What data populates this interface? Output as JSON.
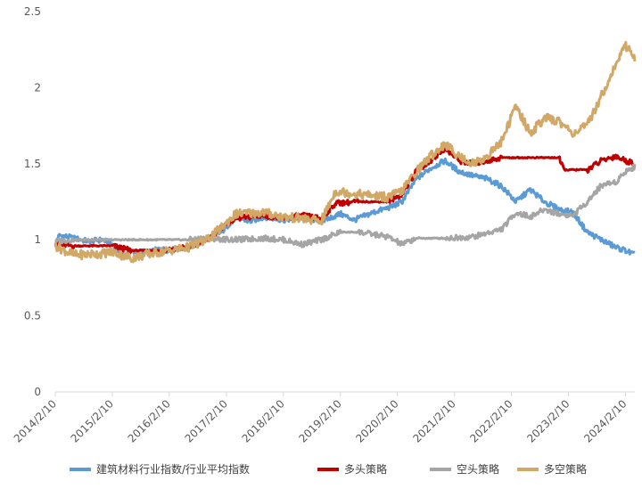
{
  "chart_data": {
    "type": "line",
    "title": "",
    "xlabel": "",
    "ylabel": "",
    "ylim": [
      0,
      2.5
    ],
    "y_ticks": [
      "0",
      "0.5",
      "1",
      "1.5",
      "2",
      "2.5"
    ],
    "x_range": [
      "2014-02-10",
      "2024-04-10"
    ],
    "x_ticks": [
      "2014/2/10",
      "2015/2/10",
      "2016/2/10",
      "2017/2/10",
      "2018/2/10",
      "2019/2/10",
      "2020/2/10",
      "2021/2/10",
      "2022/2/10",
      "2023/2/10",
      "2024/2/10"
    ],
    "grid": false,
    "legend_position": "bottom",
    "series": [
      {
        "name": "建筑材料行业指数/行业平均指数",
        "color": "#5b9bd5",
        "points": [
          [
            "2014-02-10",
            0.98
          ],
          [
            "2014-03-10",
            1.03
          ],
          [
            "2014-06-10",
            1.01
          ],
          [
            "2014-09-10",
            0.99
          ],
          [
            "2014-12-10",
            1.0
          ],
          [
            "2015-02-10",
            0.97
          ],
          [
            "2015-04-10",
            0.9
          ],
          [
            "2015-06-10",
            0.92
          ],
          [
            "2015-09-10",
            0.91
          ],
          [
            "2015-12-10",
            0.94
          ],
          [
            "2016-02-10",
            0.93
          ],
          [
            "2016-06-10",
            0.95
          ],
          [
            "2016-10-10",
            1.0
          ],
          [
            "2017-01-10",
            1.05
          ],
          [
            "2017-04-10",
            1.15
          ],
          [
            "2017-07-10",
            1.12
          ],
          [
            "2017-10-10",
            1.15
          ],
          [
            "2018-02-10",
            1.13
          ],
          [
            "2018-06-10",
            1.15
          ],
          [
            "2018-10-10",
            1.12
          ],
          [
            "2019-02-10",
            1.17
          ],
          [
            "2019-05-10",
            1.13
          ],
          [
            "2019-09-10",
            1.18
          ],
          [
            "2020-01-10",
            1.22
          ],
          [
            "2020-03-10",
            1.25
          ],
          [
            "2020-06-10",
            1.4
          ],
          [
            "2020-09-10",
            1.47
          ],
          [
            "2020-12-10",
            1.52
          ],
          [
            "2021-03-10",
            1.45
          ],
          [
            "2021-06-10",
            1.42
          ],
          [
            "2021-09-10",
            1.4
          ],
          [
            "2021-12-10",
            1.35
          ],
          [
            "2022-03-10",
            1.25
          ],
          [
            "2022-06-10",
            1.33
          ],
          [
            "2022-09-10",
            1.25
          ],
          [
            "2022-12-10",
            1.2
          ],
          [
            "2023-03-10",
            1.18
          ],
          [
            "2023-06-10",
            1.05
          ],
          [
            "2023-09-10",
            1.0
          ],
          [
            "2023-12-10",
            0.95
          ],
          [
            "2024-02-10",
            0.93
          ],
          [
            "2024-04-10",
            0.9
          ]
        ]
      },
      {
        "name": "多头策略",
        "color": "#c00000",
        "points": [
          [
            "2014-02-10",
            0.97
          ],
          [
            "2014-06-10",
            0.96
          ],
          [
            "2015-02-10",
            0.96
          ],
          [
            "2015-06-10",
            0.93
          ],
          [
            "2015-12-10",
            0.93
          ],
          [
            "2016-06-10",
            0.95
          ],
          [
            "2016-10-10",
            1.0
          ],
          [
            "2017-01-10",
            1.08
          ],
          [
            "2017-04-10",
            1.14
          ],
          [
            "2017-10-10",
            1.16
          ],
          [
            "2018-02-10",
            1.14
          ],
          [
            "2018-06-10",
            1.16
          ],
          [
            "2018-10-10",
            1.14
          ],
          [
            "2019-01-10",
            1.24
          ],
          [
            "2019-06-10",
            1.25
          ],
          [
            "2019-12-10",
            1.25
          ],
          [
            "2020-03-10",
            1.3
          ],
          [
            "2020-06-10",
            1.45
          ],
          [
            "2020-09-10",
            1.52
          ],
          [
            "2020-12-10",
            1.6
          ],
          [
            "2021-03-10",
            1.52
          ],
          [
            "2021-06-10",
            1.5
          ],
          [
            "2021-09-10",
            1.52
          ],
          [
            "2021-12-10",
            1.54
          ],
          [
            "2022-06-10",
            1.54
          ],
          [
            "2022-12-10",
            1.54
          ],
          [
            "2023-01-10",
            1.46
          ],
          [
            "2023-06-10",
            1.46
          ],
          [
            "2023-09-10",
            1.52
          ],
          [
            "2023-12-10",
            1.55
          ],
          [
            "2024-02-10",
            1.52
          ],
          [
            "2024-04-10",
            1.5
          ]
        ]
      },
      {
        "name": "空头策略",
        "color": "#a5a5a5",
        "points": [
          [
            "2014-02-10",
            0.99
          ],
          [
            "2014-06-10",
            1.0
          ],
          [
            "2015-02-10",
            1.0
          ],
          [
            "2015-06-10",
            1.0
          ],
          [
            "2016-02-10",
            1.0
          ],
          [
            "2016-06-10",
            1.0
          ],
          [
            "2016-10-10",
            1.01
          ],
          [
            "2017-04-10",
            1.0
          ],
          [
            "2017-10-10",
            1.01
          ],
          [
            "2018-02-10",
            1.0
          ],
          [
            "2018-06-10",
            0.97
          ],
          [
            "2018-10-10",
            1.0
          ],
          [
            "2019-02-10",
            1.05
          ],
          [
            "2019-06-10",
            1.05
          ],
          [
            "2019-12-10",
            1.02
          ],
          [
            "2020-03-10",
            0.97
          ],
          [
            "2020-06-10",
            1.01
          ],
          [
            "2020-12-10",
            1.01
          ],
          [
            "2021-06-10",
            1.02
          ],
          [
            "2021-12-10",
            1.07
          ],
          [
            "2022-03-10",
            1.18
          ],
          [
            "2022-06-10",
            1.15
          ],
          [
            "2022-09-10",
            1.2
          ],
          [
            "2022-12-10",
            1.17
          ],
          [
            "2023-03-10",
            1.16
          ],
          [
            "2023-06-10",
            1.25
          ],
          [
            "2023-09-10",
            1.36
          ],
          [
            "2023-12-10",
            1.38
          ],
          [
            "2024-02-10",
            1.45
          ],
          [
            "2024-04-10",
            1.48
          ]
        ]
      },
      {
        "name": "多空策略",
        "color": "#d2a867",
        "points": [
          [
            "2014-02-10",
            0.96
          ],
          [
            "2014-06-10",
            0.9
          ],
          [
            "2014-12-10",
            0.91
          ],
          [
            "2015-02-10",
            0.92
          ],
          [
            "2015-06-10",
            0.88
          ],
          [
            "2015-12-10",
            0.92
          ],
          [
            "2016-06-10",
            0.95
          ],
          [
            "2016-10-10",
            1.0
          ],
          [
            "2017-01-10",
            1.08
          ],
          [
            "2017-04-10",
            1.17
          ],
          [
            "2017-10-10",
            1.18
          ],
          [
            "2018-02-10",
            1.15
          ],
          [
            "2018-06-10",
            1.14
          ],
          [
            "2018-10-10",
            1.12
          ],
          [
            "2019-01-10",
            1.32
          ],
          [
            "2019-06-10",
            1.3
          ],
          [
            "2019-12-10",
            1.28
          ],
          [
            "2020-03-10",
            1.32
          ],
          [
            "2020-06-10",
            1.45
          ],
          [
            "2020-09-10",
            1.55
          ],
          [
            "2020-12-10",
            1.63
          ],
          [
            "2021-03-10",
            1.55
          ],
          [
            "2021-06-10",
            1.5
          ],
          [
            "2021-09-10",
            1.55
          ],
          [
            "2021-12-10",
            1.65
          ],
          [
            "2022-03-10",
            1.88
          ],
          [
            "2022-06-10",
            1.7
          ],
          [
            "2022-09-10",
            1.8
          ],
          [
            "2022-12-10",
            1.78
          ],
          [
            "2023-03-10",
            1.7
          ],
          [
            "2023-06-10",
            1.75
          ],
          [
            "2023-09-10",
            1.95
          ],
          [
            "2023-12-10",
            2.15
          ],
          [
            "2024-02-10",
            2.28
          ],
          [
            "2024-04-10",
            2.2
          ]
        ]
      }
    ]
  }
}
